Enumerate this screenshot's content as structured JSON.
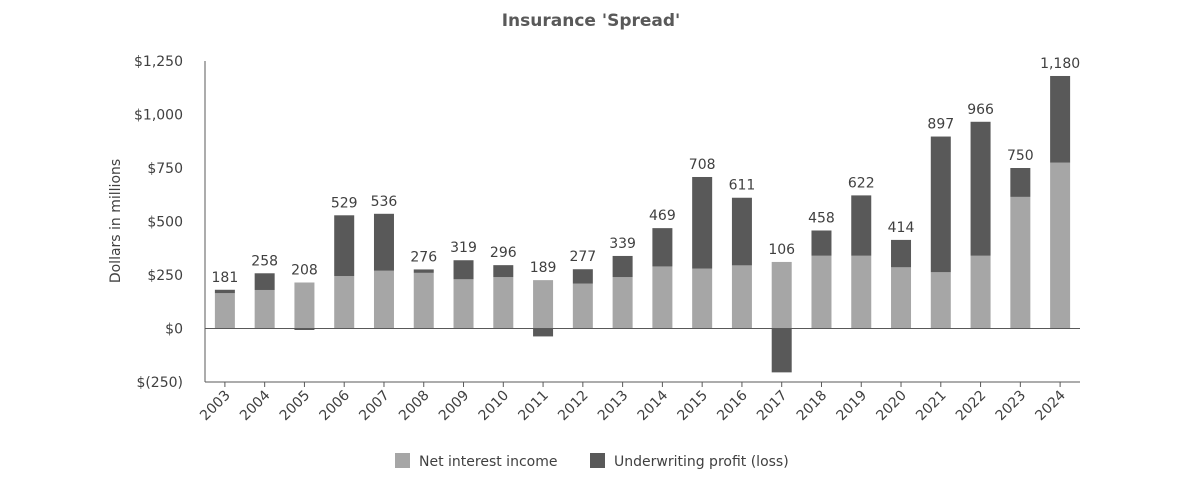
{
  "chart_data": {
    "type": "bar",
    "stacked": true,
    "title": "Insurance 'Spread'",
    "xlabel": "",
    "ylabel": "Dollars in millions",
    "ylim": [
      -250,
      1250
    ],
    "yticks": [
      -250,
      0,
      250,
      500,
      750,
      1000,
      1250
    ],
    "ytick_labels": [
      "$(250)",
      "$0",
      "$250",
      "$500",
      "$750",
      "$1,000",
      "$1,250"
    ],
    "grid": false,
    "legend_position": "bottom",
    "categories": [
      "2003",
      "2004",
      "2005",
      "2006",
      "2007",
      "2008",
      "2009",
      "2010",
      "2011",
      "2012",
      "2013",
      "2014",
      "2015",
      "2016",
      "2017",
      "2018",
      "2019",
      "2020",
      "2021",
      "2022",
      "2023",
      "2024"
    ],
    "series": [
      {
        "name": "Net interest income",
        "color": "#a6a6a6",
        "values": [
          165,
          180,
          215,
          245,
          270,
          260,
          230,
          240,
          226,
          210,
          240,
          290,
          280,
          295,
          311,
          340,
          340,
          286,
          263,
          340,
          615,
          775
        ]
      },
      {
        "name": "Underwriting profit (loss)",
        "color": "#595959",
        "values": [
          16,
          78,
          -7,
          284,
          266,
          16,
          89,
          56,
          -37,
          67,
          99,
          179,
          428,
          316,
          -205,
          118,
          282,
          128,
          634,
          626,
          135,
          405
        ]
      }
    ],
    "totals": [
      181,
      258,
      208,
      529,
      536,
      276,
      319,
      296,
      189,
      277,
      339,
      469,
      708,
      611,
      106,
      458,
      622,
      414,
      897,
      966,
      750,
      1180
    ],
    "total_labels": [
      "181",
      "258",
      "208",
      "529",
      "536",
      "276",
      "319",
      "296",
      "189",
      "277",
      "339",
      "469",
      "708",
      "611",
      "106",
      "458",
      "622",
      "414",
      "897",
      "966",
      "750",
      "1,180"
    ]
  }
}
